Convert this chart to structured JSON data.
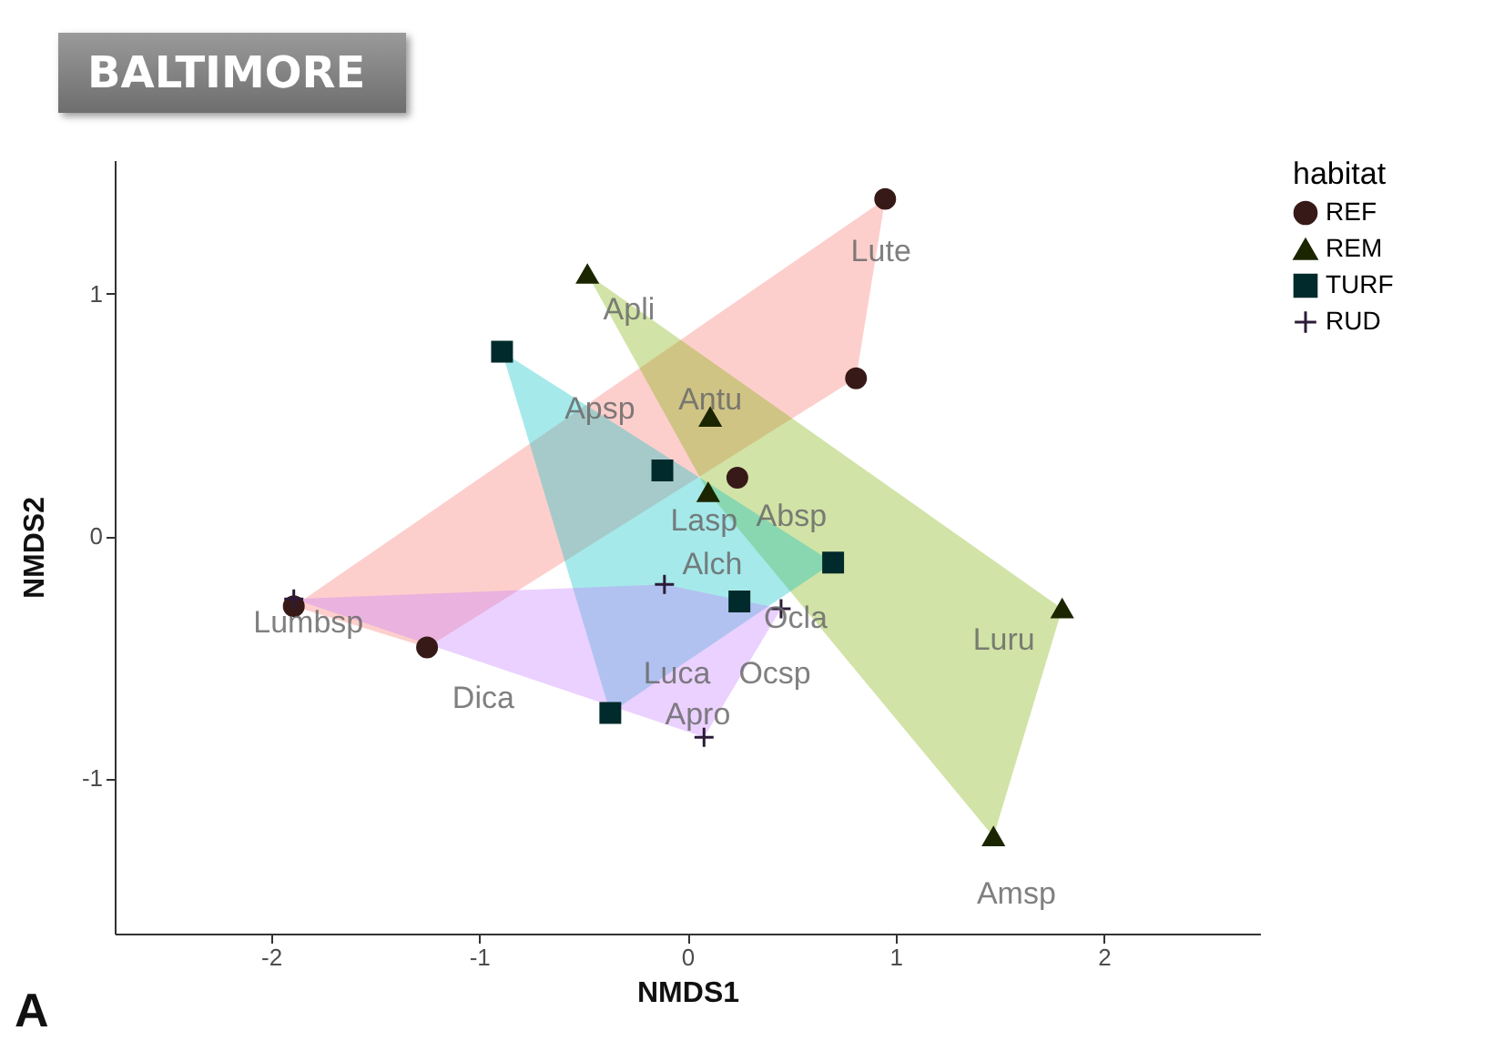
{
  "chart_data": {
    "type": "scatter",
    "title": "BALTIMORE",
    "xlabel": "NMDS1",
    "ylabel": "NMDS2",
    "legend_title": "habitat",
    "legend": "right",
    "grid": false,
    "xlim": [
      -2.75,
      2.75
    ],
    "ylim": [
      -1.64,
      1.55
    ],
    "xticks": [
      -2,
      -1,
      0,
      1,
      2
    ],
    "yticks": [
      -1,
      0,
      1
    ],
    "series": [
      {
        "type": "area",
        "color": "#f8766d",
        "x": [
          0.95,
          0.81,
          -1.25,
          -1.89
        ],
        "values": [
          1.39,
          0.65,
          -0.46,
          -0.29
        ]
      },
      {
        "type": "area",
        "color": "#7cae00",
        "x": [
          -0.48,
          1.8,
          1.47,
          0.1
        ],
        "values": [
          1.08,
          -0.3,
          -1.24,
          0.18
        ]
      },
      {
        "type": "area",
        "color": "#00bfc4",
        "x": [
          -0.89,
          0.7,
          -0.37
        ],
        "values": [
          0.76,
          -0.11,
          -0.73
        ]
      },
      {
        "type": "area",
        "color": "#c77cff",
        "x": [
          -1.89,
          -0.11,
          0.45,
          0.08
        ],
        "values": [
          -0.26,
          -0.2,
          -0.3,
          -0.83
        ]
      },
      {
        "name": "REF",
        "color": "#371a18",
        "marker": "circle",
        "x": [
          0.95,
          0.81,
          0.24,
          -1.89,
          -1.25
        ],
        "values": [
          1.39,
          0.65,
          0.24,
          -0.29,
          -0.46
        ]
      },
      {
        "name": "REM",
        "color": "#1b2600",
        "marker": "triangle",
        "x": [
          -0.48,
          0.11,
          0.1,
          1.8,
          1.47
        ],
        "values": [
          1.08,
          0.49,
          0.18,
          -0.3,
          -1.24
        ]
      },
      {
        "name": "TURF",
        "color": "#002a2b",
        "marker": "square",
        "x": [
          -0.89,
          -0.12,
          0.7,
          0.25,
          -0.37
        ],
        "values": [
          0.76,
          0.27,
          -0.11,
          -0.27,
          -0.73
        ]
      },
      {
        "name": "RUD",
        "color": "#2c1b38",
        "marker": "cross",
        "x": [
          -1.89,
          -0.11,
          0.45,
          0.08
        ],
        "values": [
          -0.26,
          -0.2,
          -0.3,
          -0.83
        ]
      }
    ],
    "annotations": [
      "Lute",
      "Apli",
      "Apsp",
      "Antu",
      "Lasp",
      "Absp",
      "Alch",
      "Ocla",
      "Lumbsp",
      "Dica",
      "Luca",
      "Ocsp",
      "Apro",
      "Luru",
      "Amsp",
      "A"
    ]
  }
}
